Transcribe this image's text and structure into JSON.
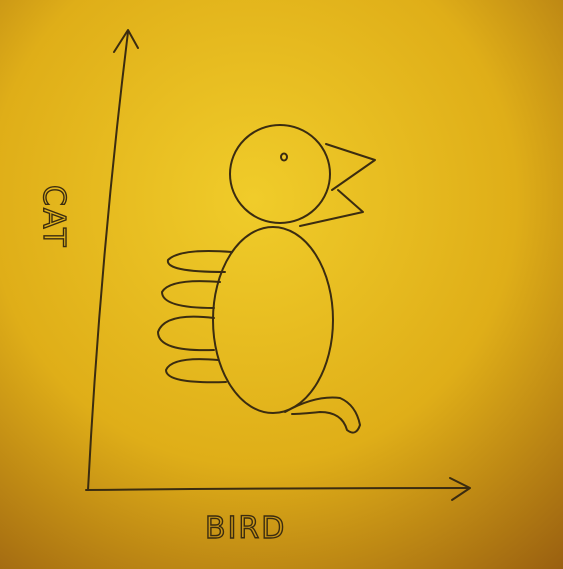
{
  "axis_labels": {
    "x": "BIRD",
    "y": "CAT"
  }
}
